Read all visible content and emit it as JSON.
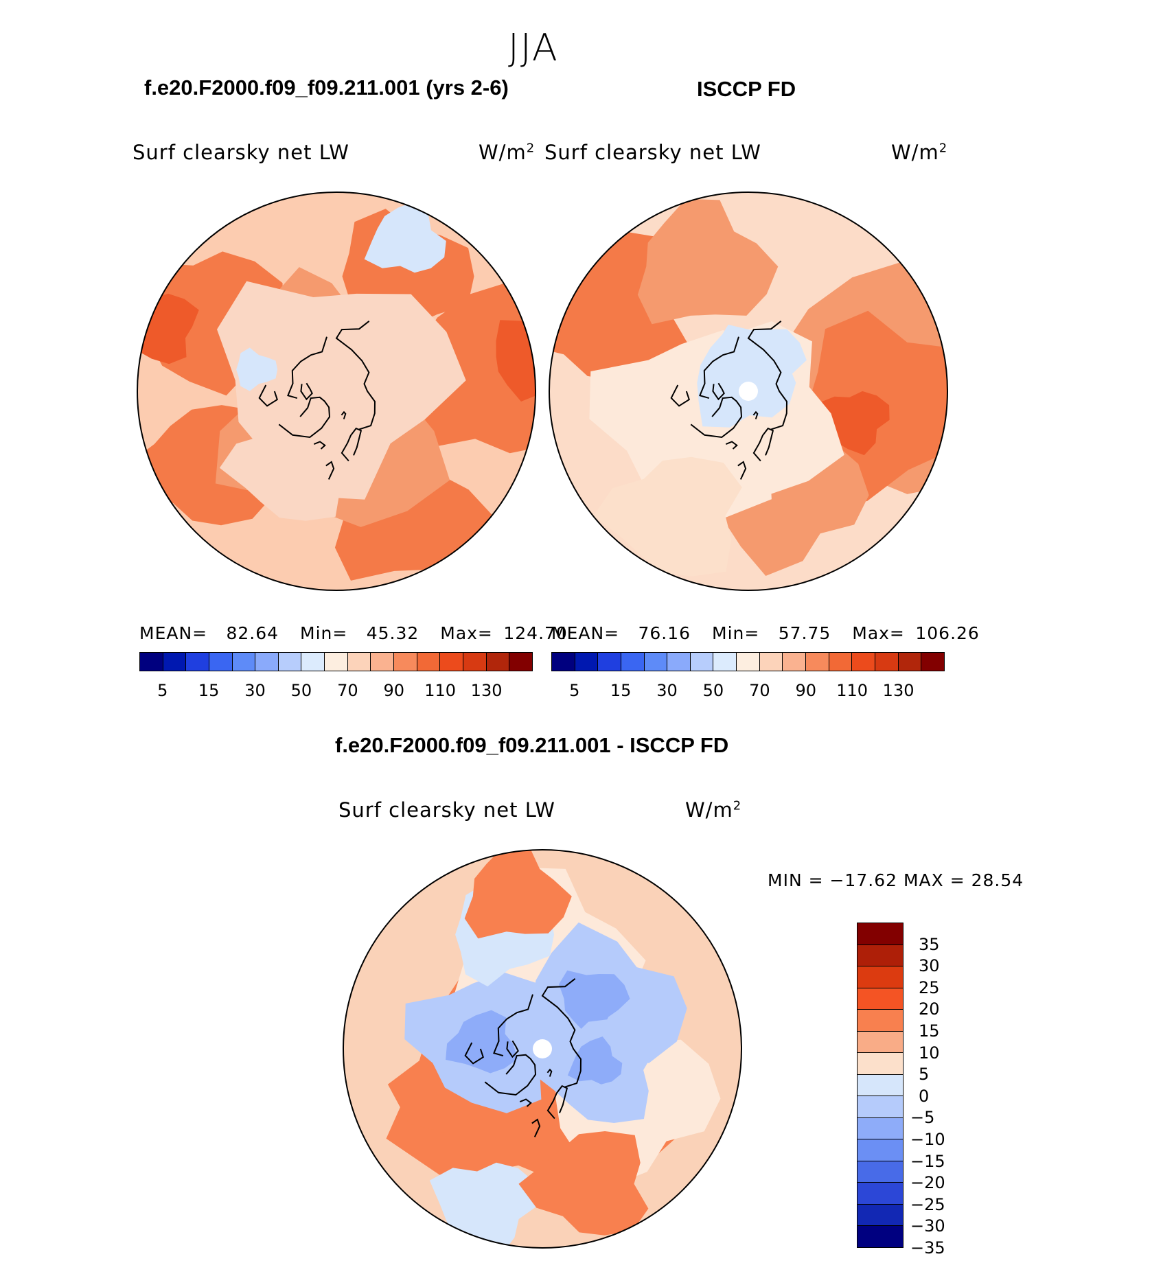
{
  "season": "JJA",
  "panel_left": {
    "case_title": "f.e20.F2000.f09_f09.211.001 (yrs 2-6)",
    "variable": "Surf clearsky net LW",
    "units": "W/m",
    "units_sup": "2",
    "mean_label": "MEAN=",
    "mean": "82.64",
    "min_label": "Min=",
    "min": "45.32",
    "max_label": "Max=",
    "max": "124.70"
  },
  "panel_right": {
    "case_title": "ISCCP FD",
    "variable": "Surf clearsky net LW",
    "units": "W/m",
    "units_sup": "2",
    "mean_label": "MEAN=",
    "mean": "76.16",
    "min_label": "Min=",
    "min": "57.75",
    "max_label": "Max=",
    "max": "106.26"
  },
  "panel_diff": {
    "title": "f.e20.F2000.f09_f09.211.001 - ISCCP FD",
    "variable": "Surf clearsky net LW",
    "units": "W/m",
    "units_sup": "2",
    "minmax_text": "MIN = −17.62 MAX =   28.54"
  },
  "colorbar_abs": {
    "colors": [
      "#00007f",
      "#0018b0",
      "#1f3fe0",
      "#3a66f2",
      "#5e8bf8",
      "#8aaafb",
      "#b7cdfc",
      "#dcebfd",
      "#fdeee0",
      "#fcd3ba",
      "#fab290",
      "#f78a5c",
      "#f26936",
      "#ec4b1c",
      "#d73a12",
      "#b1260b",
      "#820000"
    ],
    "tick_labels": [
      "5",
      "15",
      "30",
      "50",
      "70",
      "90",
      "110",
      "130"
    ]
  },
  "colorbar_diff": {
    "colors": [
      "#820000",
      "#ae1f08",
      "#dc3b10",
      "#f45424",
      "#f8804f",
      "#f9ac87",
      "#fce0cb",
      "#d6e6fb",
      "#b5cbfb",
      "#8eacf9",
      "#6b8ff4",
      "#486be8",
      "#2c47d7",
      "#1228b4",
      "#000080"
    ],
    "tick_labels": [
      "35",
      "30",
      "25",
      "20",
      "15",
      "10",
      "5",
      "0",
      "−5",
      "−10",
      "−15",
      "−20",
      "−25",
      "−30",
      "−35"
    ]
  },
  "maps": {
    "left": {
      "background": "#fcccb0",
      "patches": [
        {
          "c": "#f47a48",
          "lon": 95,
          "lat": 20,
          "r": 110
        },
        {
          "c": "#f47a48",
          "lon": 150,
          "lat": 30,
          "r": 80
        },
        {
          "c": "#f47a48",
          "lon": 240,
          "lat": 22,
          "r": 90
        },
        {
          "c": "#f47a48",
          "lon": 300,
          "lat": 22,
          "r": 80
        },
        {
          "c": "#f47a48",
          "lon": 30,
          "lat": 25,
          "r": 90
        },
        {
          "c": "#ee5a2a",
          "lon": 100,
          "lat": 0,
          "r": 50
        },
        {
          "c": "#ee5a2a",
          "lon": 250,
          "lat": 5,
          "r": 45
        },
        {
          "c": "#f59a6e",
          "lon": 0,
          "lat": 72,
          "r": 130
        },
        {
          "c": "#f59a6e",
          "lon": 200,
          "lat": 65,
          "r": 80
        },
        {
          "c": "#fad7c4",
          "lon": 190,
          "lat": 85,
          "r": 140
        },
        {
          "c": "#fad7c4",
          "lon": 330,
          "lat": 50,
          "r": 70
        },
        {
          "c": "#d6e6fb",
          "lon": 155,
          "lat": 15,
          "r": 45
        },
        {
          "c": "#d6e6fb",
          "lon": 255,
          "lat": 52,
          "r": 25
        }
      ]
    },
    "right": {
      "background": "#fcdcc8",
      "patches": [
        {
          "c": "#f59a6e",
          "lon": 90,
          "lat": 30,
          "r": 150
        },
        {
          "c": "#f47a48",
          "lon": 85,
          "lat": 25,
          "r": 110
        },
        {
          "c": "#ee5a2a",
          "lon": 75,
          "lat": 40,
          "r": 40
        },
        {
          "c": "#f47a48",
          "lon": 240,
          "lat": 15,
          "r": 100
        },
        {
          "c": "#f59a6e",
          "lon": 200,
          "lat": 30,
          "r": 80
        },
        {
          "c": "#f59a6e",
          "lon": 20,
          "lat": 40,
          "r": 90
        },
        {
          "c": "#fde9da",
          "lon": 300,
          "lat": 65,
          "r": 120
        },
        {
          "c": "#fde9da",
          "lon": 0,
          "lat": 80,
          "r": 110
        },
        {
          "c": "#d6e6fb",
          "lon": 220,
          "lat": 85,
          "r": 60
        },
        {
          "c": "#d6e6fb",
          "lon": 160,
          "lat": 75,
          "r": 50
        },
        {
          "c": "#fce0cb",
          "lon": 330,
          "lat": 25,
          "r": 80
        }
      ]
    },
    "diff": {
      "background": "#fad2b8",
      "patches": [
        {
          "c": "#f8804f",
          "lon": 0,
          "lat": 80,
          "r": 170
        },
        {
          "c": "#f45424",
          "lon": 330,
          "lat": 84,
          "r": 60
        },
        {
          "c": "#f45424",
          "lon": 320,
          "lat": 68,
          "r": 55
        },
        {
          "c": "#f8804f",
          "lon": 310,
          "lat": 65,
          "r": 110
        },
        {
          "c": "#fde9da",
          "lon": 180,
          "lat": 50,
          "r": 110
        },
        {
          "c": "#fde9da",
          "lon": 60,
          "lat": 45,
          "r": 100
        },
        {
          "c": "#b5cbfb",
          "lon": 260,
          "lat": 65,
          "r": 90
        },
        {
          "c": "#8eacf9",
          "lon": 265,
          "lat": 63,
          "r": 40
        },
        {
          "c": "#b5cbfb",
          "lon": 125,
          "lat": 58,
          "r": 95
        },
        {
          "c": "#8eacf9",
          "lon": 135,
          "lat": 58,
          "r": 40
        },
        {
          "c": "#b5cbfb",
          "lon": 70,
          "lat": 62,
          "r": 70
        },
        {
          "c": "#8eacf9",
          "lon": 75,
          "lat": 65,
          "r": 30
        },
        {
          "c": "#d6e6fb",
          "lon": 200,
          "lat": 35,
          "r": 60
        },
        {
          "c": "#d6e6fb",
          "lon": 340,
          "lat": 15,
          "r": 60
        },
        {
          "c": "#f8804f",
          "lon": 20,
          "lat": 25,
          "r": 70
        },
        {
          "c": "#f8804f",
          "lon": 190,
          "lat": 20,
          "r": 60
        }
      ]
    }
  }
}
